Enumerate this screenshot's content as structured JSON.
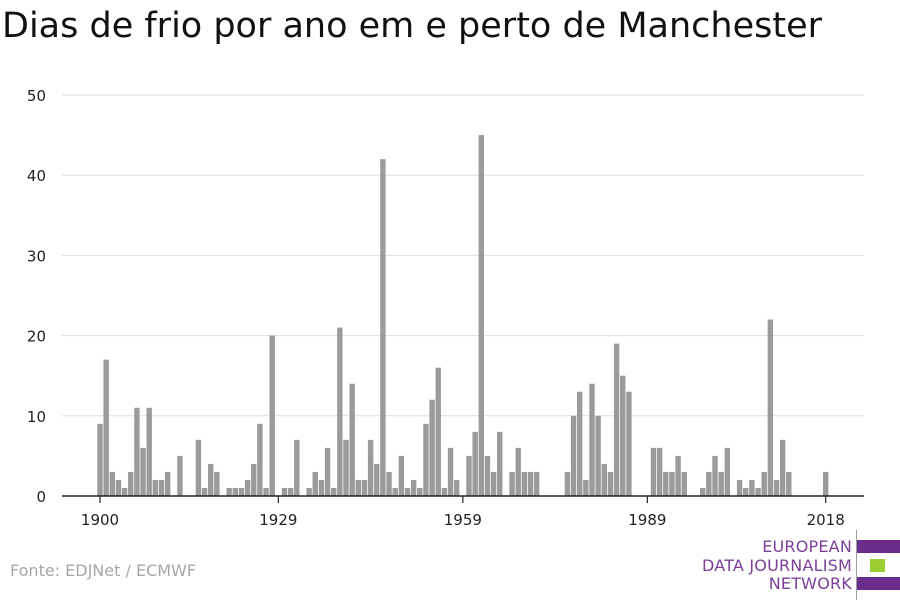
{
  "title": "Dias de frio por ano em e perto de Manchester",
  "source": "Fonte: EDJNet / ECMWF",
  "logo": {
    "lines": [
      "EUROPEAN",
      "DATA JOURNALISM",
      "NETWORK"
    ],
    "text_color": "#7b3f99",
    "bar_colors": [
      "#6a2d8c",
      "#9acd32",
      "#6a2d8c"
    ]
  },
  "chart_data": {
    "type": "bar",
    "title": "Dias de frio por ano em e perto de Manchester",
    "xlabel": "",
    "ylabel": "",
    "xlim": [
      1895,
      2024
    ],
    "ylim": [
      0,
      50
    ],
    "yticks": [
      0,
      10,
      20,
      30,
      40,
      50
    ],
    "xticks": [
      1900,
      1929,
      1959,
      1989,
      2018
    ],
    "grid": true,
    "bar_color": "#9b9b9b",
    "x": [
      1900,
      1901,
      1902,
      1903,
      1904,
      1905,
      1906,
      1907,
      1908,
      1909,
      1910,
      1911,
      1912,
      1913,
      1914,
      1915,
      1916,
      1917,
      1918,
      1919,
      1920,
      1921,
      1922,
      1923,
      1924,
      1925,
      1926,
      1927,
      1928,
      1929,
      1930,
      1931,
      1932,
      1933,
      1934,
      1935,
      1936,
      1937,
      1938,
      1939,
      1940,
      1941,
      1942,
      1943,
      1944,
      1945,
      1946,
      1947,
      1948,
      1949,
      1950,
      1951,
      1952,
      1953,
      1954,
      1955,
      1956,
      1957,
      1958,
      1959,
      1960,
      1961,
      1962,
      1963,
      1964,
      1965,
      1966,
      1967,
      1968,
      1969,
      1970,
      1971,
      1972,
      1973,
      1974,
      1975,
      1976,
      1977,
      1978,
      1979,
      1980,
      1981,
      1982,
      1983,
      1984,
      1985,
      1986,
      1987,
      1988,
      1989,
      1990,
      1991,
      1992,
      1993,
      1994,
      1995,
      1996,
      1997,
      1998,
      1999,
      2000,
      2001,
      2002,
      2003,
      2004,
      2005,
      2006,
      2007,
      2008,
      2009,
      2010,
      2011,
      2012,
      2013,
      2014,
      2015,
      2016,
      2017,
      2018
    ],
    "values": [
      9,
      17,
      3,
      2,
      1,
      3,
      11,
      6,
      11,
      2,
      2,
      3,
      0,
      5,
      0,
      0,
      7,
      1,
      4,
      3,
      0,
      1,
      1,
      1,
      2,
      4,
      9,
      1,
      20,
      0,
      1,
      1,
      7,
      0,
      1,
      3,
      2,
      6,
      1,
      21,
      7,
      14,
      2,
      2,
      7,
      4,
      42,
      3,
      1,
      5,
      1,
      2,
      1,
      9,
      12,
      16,
      1,
      6,
      2,
      0,
      5,
      8,
      45,
      5,
      3,
      8,
      0,
      3,
      6,
      3,
      3,
      3,
      0,
      0,
      0,
      0,
      3,
      10,
      13,
      2,
      14,
      10,
      4,
      3,
      19,
      15,
      13,
      0,
      0,
      0,
      6,
      6,
      3,
      3,
      5,
      3,
      0,
      0,
      1,
      3,
      5,
      3,
      6,
      0,
      2,
      1,
      2,
      1,
      3,
      22,
      2,
      7,
      3,
      0,
      0,
      0,
      0,
      0,
      3
    ]
  }
}
